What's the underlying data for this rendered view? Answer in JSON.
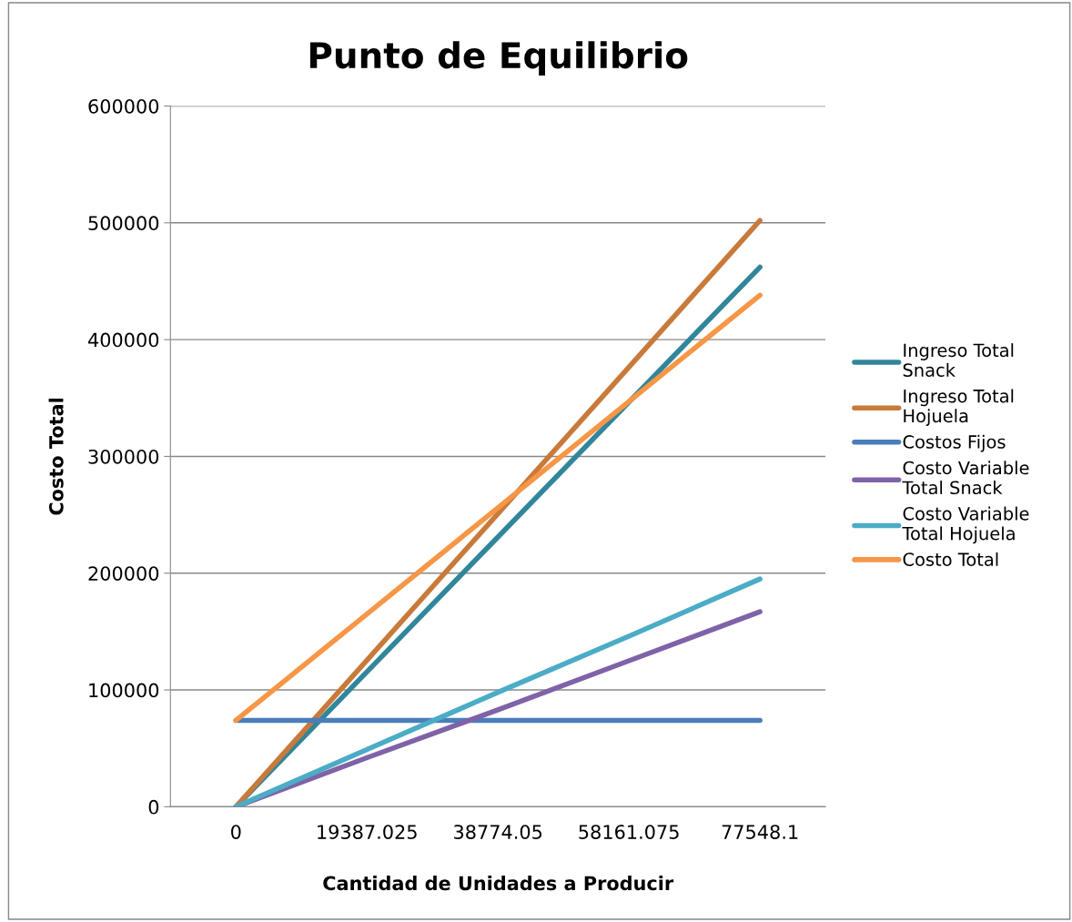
{
  "chart_data": {
    "type": "line",
    "title": "Punto de Equilibrio",
    "xlabel": "Cantidad de Unidades a Producir",
    "ylabel": "Costo Total",
    "categories": [
      "0",
      "19387.025",
      "38774.05",
      "58161.075",
      "77548.1"
    ],
    "series": [
      {
        "name": "Ingreso Total Snack",
        "color": "#31869b",
        "values": [
          0,
          115500,
          231000,
          346500,
          462000
        ]
      },
      {
        "name": "Ingreso Total Hojuela",
        "color": "#c87a3a",
        "values": [
          0,
          125500,
          251000,
          376500,
          502000
        ]
      },
      {
        "name": "Costos Fijos",
        "color": "#4a7ebb",
        "values": [
          74000,
          74000,
          74000,
          74000,
          74000
        ]
      },
      {
        "name": "Costo Variable Total Snack",
        "color": "#7f62a8",
        "values": [
          0,
          42000,
          83000,
          125000,
          167000
        ]
      },
      {
        "name": "Costo Variable Total Hojuela",
        "color": "#4bacc6",
        "values": [
          0,
          49000,
          98000,
          146000,
          195000
        ]
      },
      {
        "name": "Costo Total",
        "color": "#f79646",
        "values": [
          74000,
          165000,
          256000,
          347000,
          438000
        ]
      }
    ],
    "ylim": [
      0,
      600000
    ],
    "yticks": [
      0,
      100000,
      200000,
      300000,
      400000,
      500000,
      600000
    ],
    "grid": "y",
    "legend": "right",
    "marker": "none",
    "line_style": "solid"
  }
}
